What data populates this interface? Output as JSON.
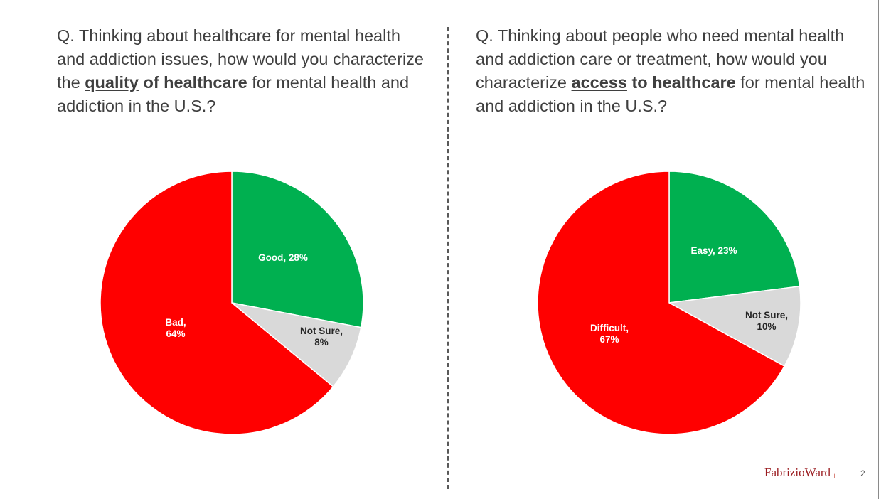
{
  "questions": [
    {
      "pre": "Q. Thinking about healthcare for mental health and addiction issues, how would you characterize the ",
      "key": "quality",
      "emph": " of healthcare",
      "post": " for mental health and addiction in the U.S.?"
    },
    {
      "pre": "Q. Thinking about people who need mental health and addiction care or treatment, how would you characterize ",
      "key": "access",
      "emph": " to healthcare",
      "post": " for mental health and addiction in the U.S.?"
    }
  ],
  "chart_data": [
    {
      "type": "pie",
      "slices": [
        {
          "label": "Good",
          "value": 28,
          "color": "#00b050",
          "text_color": "#ffffff",
          "display": [
            "Good, 28%"
          ]
        },
        {
          "label": "Not Sure",
          "value": 8,
          "color": "#d9d9d9",
          "text_color": "#262626",
          "display": [
            "Not Sure,",
            "8%"
          ]
        },
        {
          "label": "Bad",
          "value": 64,
          "color": "#ff0000",
          "text_color": "#ffffff",
          "display": [
            "Bad,",
            "64%"
          ]
        }
      ]
    },
    {
      "type": "pie",
      "slices": [
        {
          "label": "Easy",
          "value": 23,
          "color": "#00b050",
          "text_color": "#ffffff",
          "display": [
            "Easy, 23%"
          ]
        },
        {
          "label": "Not Sure",
          "value": 10,
          "color": "#d9d9d9",
          "text_color": "#262626",
          "display": [
            "Not Sure,",
            "10%"
          ]
        },
        {
          "label": "Difficult",
          "value": 67,
          "color": "#ff0000",
          "text_color": "#ffffff",
          "display": [
            "Difficult,",
            "67%"
          ]
        }
      ]
    }
  ],
  "footer": {
    "brand": "FabrizioWard",
    "brand_mark": "+",
    "page_number": "2"
  }
}
